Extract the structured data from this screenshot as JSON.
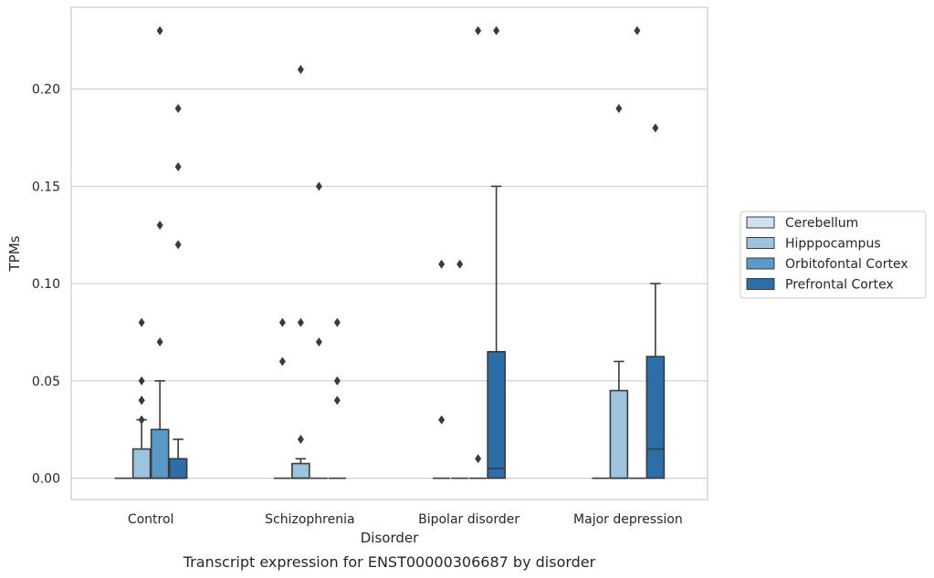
{
  "chart_data": {
    "type": "box",
    "caption": "Transcript expression for ENST00000306687 by disorder",
    "xlabel": "Disorder",
    "ylabel": "TPMs",
    "ylim": [
      -0.011,
      0.242
    ],
    "yticks": [
      0.0,
      0.05,
      0.1,
      0.15,
      0.2
    ],
    "ytick_labels": [
      "0.00",
      "0.05",
      "0.10",
      "0.15",
      "0.20"
    ],
    "grid": "horizontal",
    "legend_position": "right",
    "categories": [
      "Control",
      "Schizophrenia",
      "Bipolar disorder",
      "Major depression"
    ],
    "series": [
      {
        "name": "Cerebellum",
        "color": "#d0e1f1",
        "boxes": [
          {
            "q1": 0,
            "median": 0,
            "q3": 0,
            "whisker_low": 0,
            "whisker_high": 0,
            "outliers": []
          },
          {
            "q1": 0,
            "median": 0,
            "q3": 0,
            "whisker_low": 0,
            "whisker_high": 0,
            "outliers": [
              0.06,
              0.08
            ]
          },
          {
            "q1": 0,
            "median": 0,
            "q3": 0,
            "whisker_low": 0,
            "whisker_high": 0,
            "outliers": [
              0.03,
              0.11
            ]
          },
          {
            "q1": 0,
            "median": 0,
            "q3": 0,
            "whisker_low": 0,
            "whisker_high": 0,
            "outliers": []
          }
        ]
      },
      {
        "name": "Hipppocampus",
        "color": "#9cc4de",
        "boxes": [
          {
            "q1": 0,
            "median": 0,
            "q3": 0.015,
            "whisker_low": 0,
            "whisker_high": 0.03,
            "outliers": [
              0.04,
              0.05,
              0.08,
              0.03,
              0.04
            ]
          },
          {
            "q1": 0,
            "median": 0,
            "q3": 0.0075,
            "whisker_low": 0,
            "whisker_high": 0.01,
            "outliers": [
              0.02,
              0.08,
              0.21
            ]
          },
          {
            "q1": 0,
            "median": 0,
            "q3": 0,
            "whisker_low": 0,
            "whisker_high": 0,
            "outliers": [
              0.11
            ]
          },
          {
            "q1": 0,
            "median": 0,
            "q3": 0.045,
            "whisker_low": 0,
            "whisker_high": 0.06,
            "outliers": [
              0.19
            ]
          }
        ]
      },
      {
        "name": "Orbitofontal Cortex",
        "color": "#5a9ac9",
        "boxes": [
          {
            "q1": 0,
            "median": 0,
            "q3": 0.025,
            "whisker_low": 0,
            "whisker_high": 0.05,
            "outliers": [
              0.07,
              0.13,
              0.23
            ]
          },
          {
            "q1": 0,
            "median": 0,
            "q3": 0,
            "whisker_low": 0,
            "whisker_high": 0,
            "outliers": [
              0.07,
              0.15
            ]
          },
          {
            "q1": 0,
            "median": 0,
            "q3": 0,
            "whisker_low": 0,
            "whisker_high": 0,
            "outliers": [
              0.01,
              0.23
            ]
          },
          {
            "q1": 0,
            "median": 0,
            "q3": 0,
            "whisker_low": 0,
            "whisker_high": 0,
            "outliers": [
              0.23
            ]
          }
        ]
      },
      {
        "name": "Prefrontal Cortex",
        "color": "#2c6ea8",
        "boxes": [
          {
            "q1": 0,
            "median": 0,
            "q3": 0.01,
            "whisker_low": 0,
            "whisker_high": 0.02,
            "outliers": [
              0.12,
              0.16,
              0.19
            ]
          },
          {
            "q1": 0,
            "median": 0,
            "q3": 0,
            "whisker_low": 0,
            "whisker_high": 0,
            "outliers": [
              0.04,
              0.05,
              0.08
            ]
          },
          {
            "q1": 0,
            "median": 0.005,
            "q3": 0.065,
            "whisker_low": 0,
            "whisker_high": 0.15,
            "outliers": [
              0.23
            ]
          },
          {
            "q1": 0,
            "median": 0.015,
            "q3": 0.0625,
            "whisker_low": 0,
            "whisker_high": 0.1,
            "outliers": [
              0.18
            ]
          }
        ]
      }
    ]
  }
}
